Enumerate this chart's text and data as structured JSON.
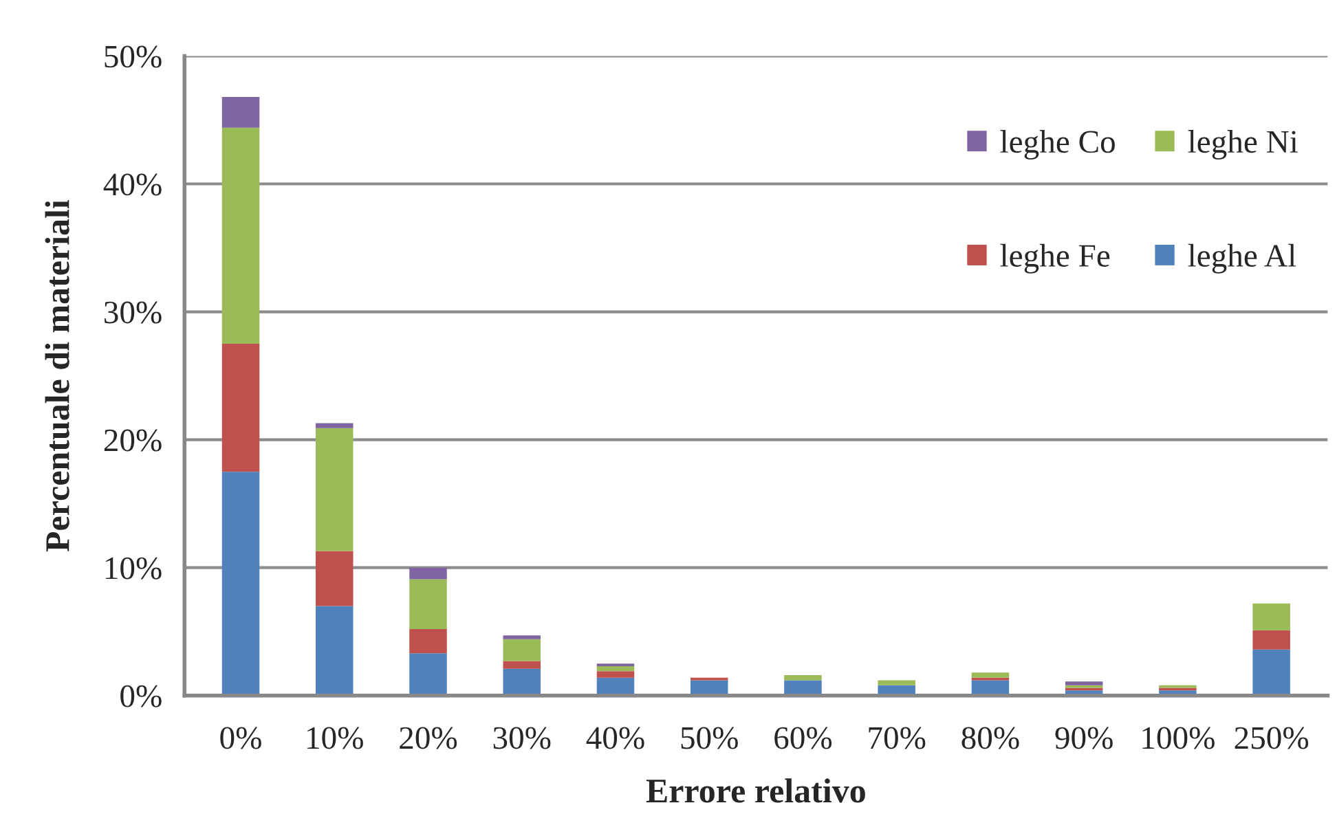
{
  "chart_data": {
    "type": "bar",
    "stacked": true,
    "xlabel": "Errore relativo",
    "ylabel": "Percentuale di materiali",
    "categories": [
      "0%",
      "10%",
      "20%",
      "30%",
      "40%",
      "50%",
      "60%",
      "70%",
      "80%",
      "90%",
      "100%",
      "250%"
    ],
    "series": [
      {
        "name": "leghe Al",
        "color": "#4f81bd",
        "values": [
          17.5,
          7.0,
          3.3,
          2.1,
          1.4,
          1.2,
          1.2,
          0.8,
          1.2,
          0.4,
          0.4,
          3.6
        ]
      },
      {
        "name": "leghe Fe",
        "color": "#c0504d",
        "values": [
          10.0,
          4.3,
          1.9,
          0.6,
          0.5,
          0.2,
          null,
          null,
          0.2,
          0.2,
          0.2,
          1.5
        ]
      },
      {
        "name": "leghe Ni",
        "color": "#9bbb59",
        "values": [
          16.9,
          9.6,
          3.9,
          1.7,
          0.4,
          null,
          0.4,
          0.4,
          0.4,
          0.2,
          0.2,
          2.1
        ]
      },
      {
        "name": "leghe Co",
        "color": "#8064a2",
        "values": [
          2.4,
          0.4,
          0.9,
          0.3,
          0.2,
          null,
          null,
          null,
          null,
          0.3,
          null,
          null
        ]
      }
    ],
    "ylim": [
      0,
      50
    ],
    "yticks": [
      {
        "value": 0,
        "label": "0%"
      },
      {
        "value": 10,
        "label": "10%"
      },
      {
        "value": 20,
        "label": "20%"
      },
      {
        "value": 30,
        "label": "30%"
      },
      {
        "value": 40,
        "label": "40%"
      },
      {
        "value": 50,
        "label": "50%"
      }
    ],
    "grid": "y",
    "legend": "top right"
  }
}
